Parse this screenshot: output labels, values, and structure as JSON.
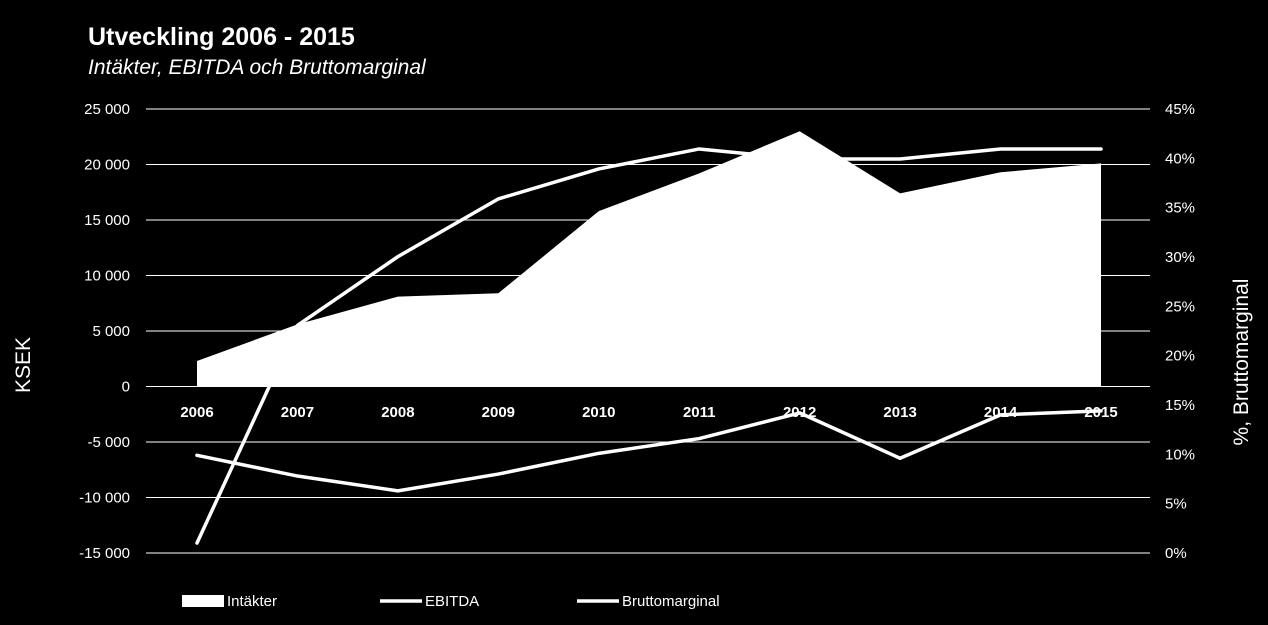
{
  "chart_data": {
    "type": "area+line",
    "title": "Utveckling 2006 - 2015",
    "subtitle": "Intäkter, EBITDA och Bruttomarginal",
    "ylabel": "KSEK",
    "y2label": "%, Bruttomarginal",
    "categories": [
      "2006",
      "2007",
      "2008",
      "2009",
      "2010",
      "2011",
      "2012",
      "2013",
      "2014",
      "2015"
    ],
    "ylim": [
      -15000,
      25000
    ],
    "y_ticks": [
      25000,
      20000,
      15000,
      10000,
      5000,
      0,
      -5000,
      -10000,
      -15000
    ],
    "y_tick_labels": [
      "25 000",
      "20 000",
      "15 000",
      "10 000",
      "5 000",
      "0",
      "-5 000",
      "-10 000",
      "-15 000"
    ],
    "y2lim": [
      0,
      45
    ],
    "y2_ticks": [
      45,
      40,
      35,
      30,
      25,
      20,
      15,
      10,
      5,
      0
    ],
    "y2_tick_labels": [
      "45%",
      "40%",
      "35%",
      "30%",
      "25%",
      "20%",
      "15%",
      "10%",
      "5%",
      "0%"
    ],
    "grid": true,
    "legend_position": "bottom",
    "series": [
      {
        "name": "Intäkter",
        "type": "area",
        "axis": "left",
        "values": [
          2300,
          5600,
          8100,
          8400,
          15800,
          19200,
          23000,
          17400,
          19300,
          20100
        ]
      },
      {
        "name": "EBITDA",
        "type": "line",
        "axis": "left",
        "values": [
          -14100,
          5500,
          11700,
          16900,
          19600,
          21400,
          20500,
          20500,
          21400,
          21400
        ]
      },
      {
        "name": "Bruttomarginal",
        "type": "line",
        "axis": "right",
        "values": [
          9.9,
          7.8,
          6.3,
          8.0,
          10.1,
          11.6,
          14.2,
          9.6,
          14.0,
          14.4
        ]
      }
    ],
    "colors": {
      "background": "#000000",
      "series": "#ffffff",
      "grid": "#ffffff"
    }
  }
}
